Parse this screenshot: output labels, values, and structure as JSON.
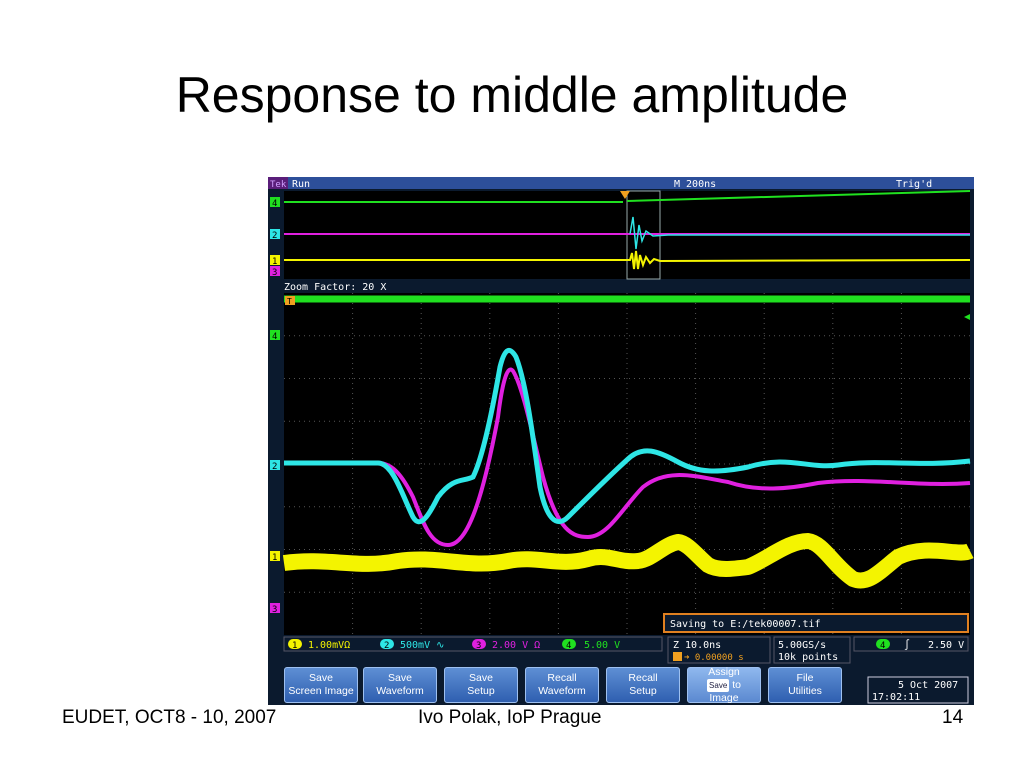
{
  "slide": {
    "title": "Response to middle amplitude",
    "footer_left": "EUDET, OCT8 - 10, 2007",
    "footer_center": "Ivo Polak, IoP Prague",
    "footer_right": "14"
  },
  "scope": {
    "status": {
      "brand": "Tek",
      "state": "Run",
      "timebase": "M 200ns",
      "trigger_state": "Trig'd"
    },
    "zoom_label": "Zoom Factor: 20 X",
    "saving_message": "Saving to E:/tek00007.tif",
    "channel_markers": {
      "ch4": "4",
      "ch2": "2",
      "ch1": "1",
      "ch3": "3",
      "trigger": "T"
    },
    "channels": [
      {
        "num": "1",
        "scale": "1.00mVΩ",
        "color": "#f4f400"
      },
      {
        "num": "2",
        "scale": "500mV ∿",
        "color": "#2ee6e6"
      },
      {
        "num": "3",
        "scale": "2.00 V  Ω",
        "color": "#e020e0"
      },
      {
        "num": "4",
        "scale": "5.00 V",
        "color": "#20e020"
      }
    ],
    "horizontal": {
      "zoom_scale": "Z 10.0ns",
      "position": "0.00000 s"
    },
    "acquisition": {
      "sample_rate": "5.00GS/s",
      "record_length": "10k points"
    },
    "trigger": {
      "channel": "4",
      "slope": "∫",
      "level": "2.50 V"
    },
    "datetime": {
      "date": "5 Oct  2007",
      "time": "17:02:11"
    },
    "buttons": {
      "save_screen": [
        "Save",
        "Screen Image"
      ],
      "save_waveform": [
        "Save",
        "Waveform"
      ],
      "save_setup": [
        "Save",
        "Setup"
      ],
      "recall_waveform": [
        "Recall",
        "Waveform"
      ],
      "recall_setup": [
        "Recall",
        "Setup"
      ],
      "assign": [
        "Assign",
        "Save",
        "to",
        "Image"
      ],
      "file_utilities": [
        "File",
        "Utilities"
      ]
    },
    "colors": {
      "ch1": "#f4f400",
      "ch2": "#2ee6e6",
      "ch3": "#e020e0",
      "ch4": "#20e020",
      "background": "#000000",
      "frame": "#0b1a2e",
      "accent": "#3a6ac8"
    }
  }
}
